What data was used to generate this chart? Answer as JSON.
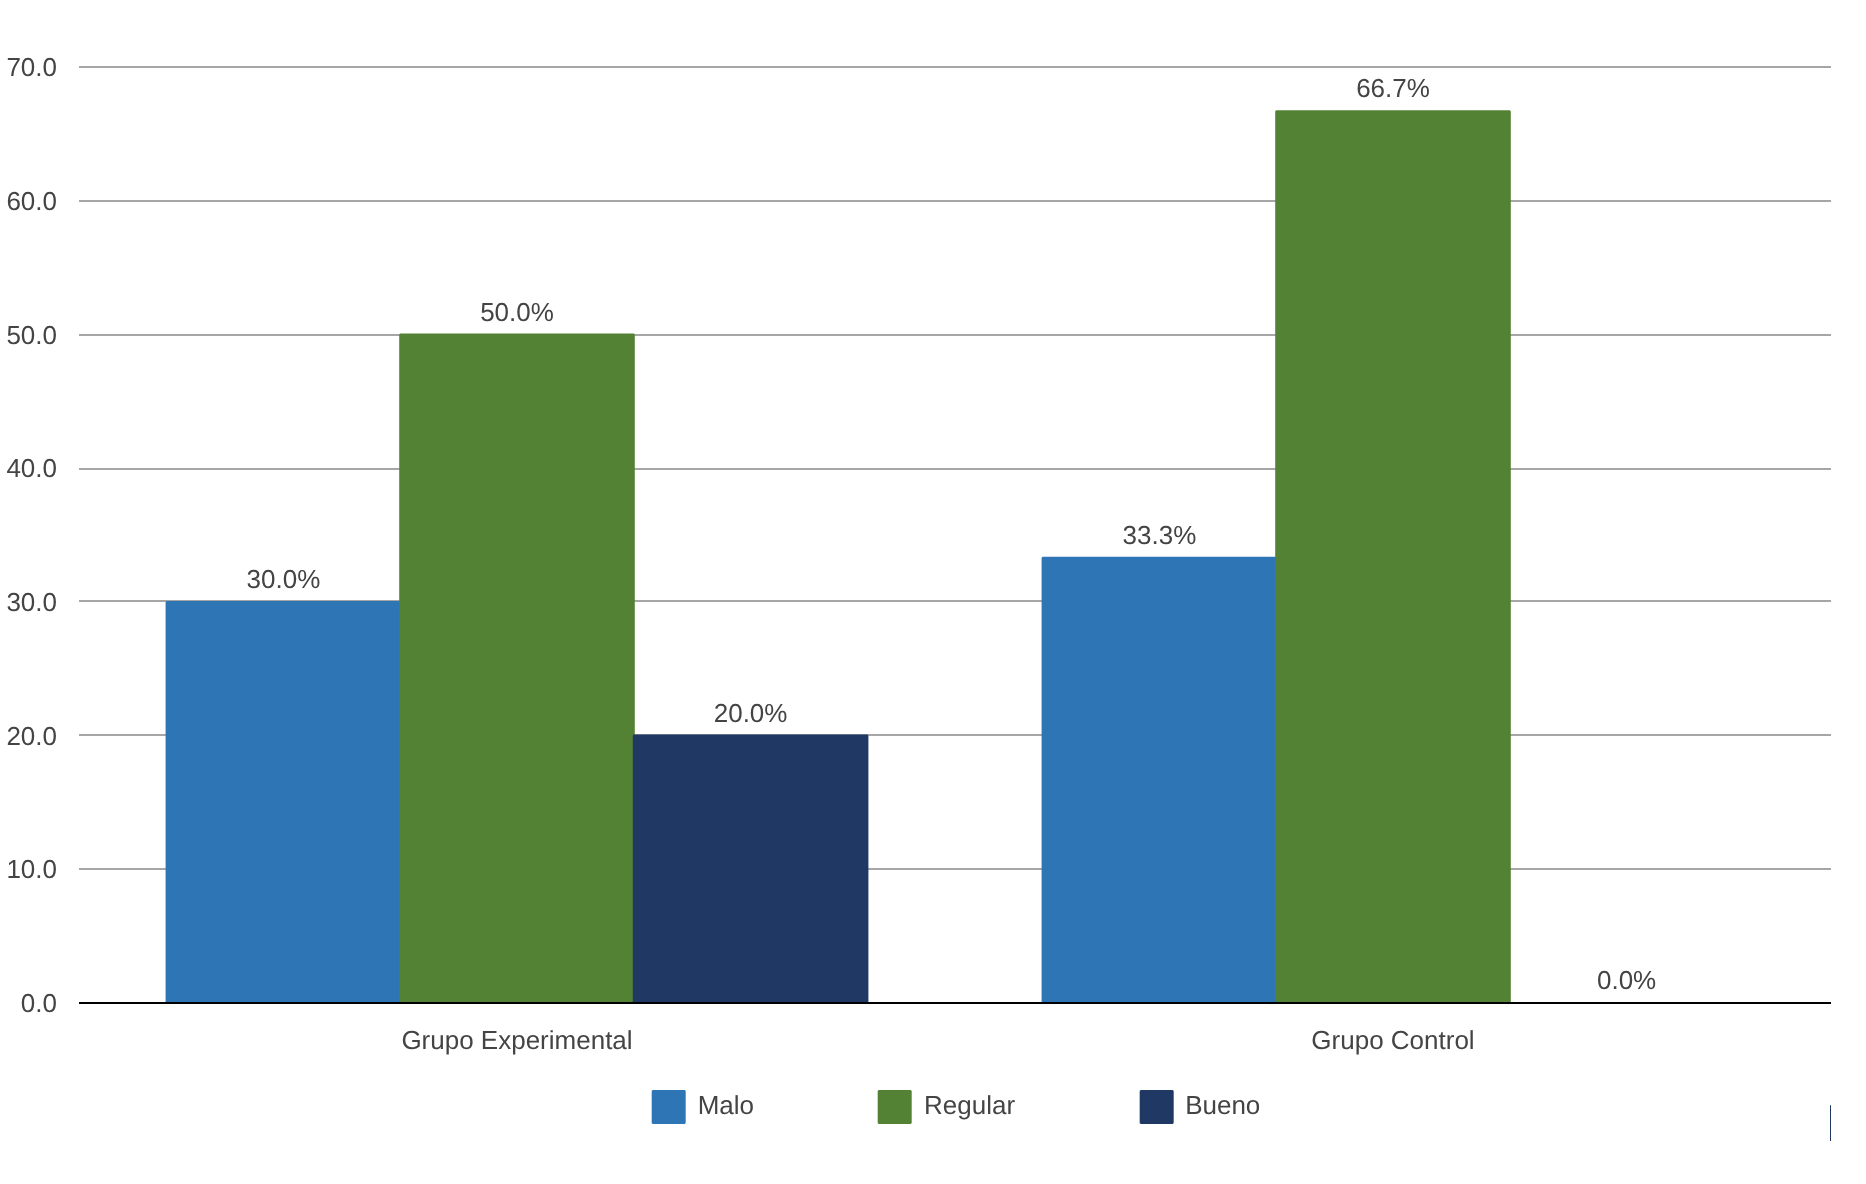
{
  "chart_data": {
    "type": "bar",
    "categories": [
      "Grupo Experimental",
      "Grupo Control"
    ],
    "series": [
      {
        "name": "Malo",
        "color": "#2e75b6",
        "values": [
          30.0,
          33.3
        ],
        "value_labels": [
          "30.0%",
          "33.3%"
        ]
      },
      {
        "name": "Regular",
        "color": "#548235",
        "values": [
          50.0,
          66.7
        ],
        "value_labels": [
          "50.0%",
          "66.7%"
        ]
      },
      {
        "name": "Bueno",
        "color": "#1f3864",
        "values": [
          20.0,
          0.0
        ],
        "value_labels": [
          "20.0%",
          "0.0%"
        ]
      }
    ],
    "ylim": [
      0,
      70
    ],
    "yticks": [
      {
        "value": 0,
        "label": "0.0"
      },
      {
        "value": 10,
        "label": "10.0"
      },
      {
        "value": 20,
        "label": "20.0"
      },
      {
        "value": 30,
        "label": "30.0"
      },
      {
        "value": 40,
        "label": "40.0"
      },
      {
        "value": 50,
        "label": "50.0"
      },
      {
        "value": 60,
        "label": "60.0"
      },
      {
        "value": 70,
        "label": "70.0"
      }
    ],
    "grid": "y",
    "legend": "bottom"
  }
}
